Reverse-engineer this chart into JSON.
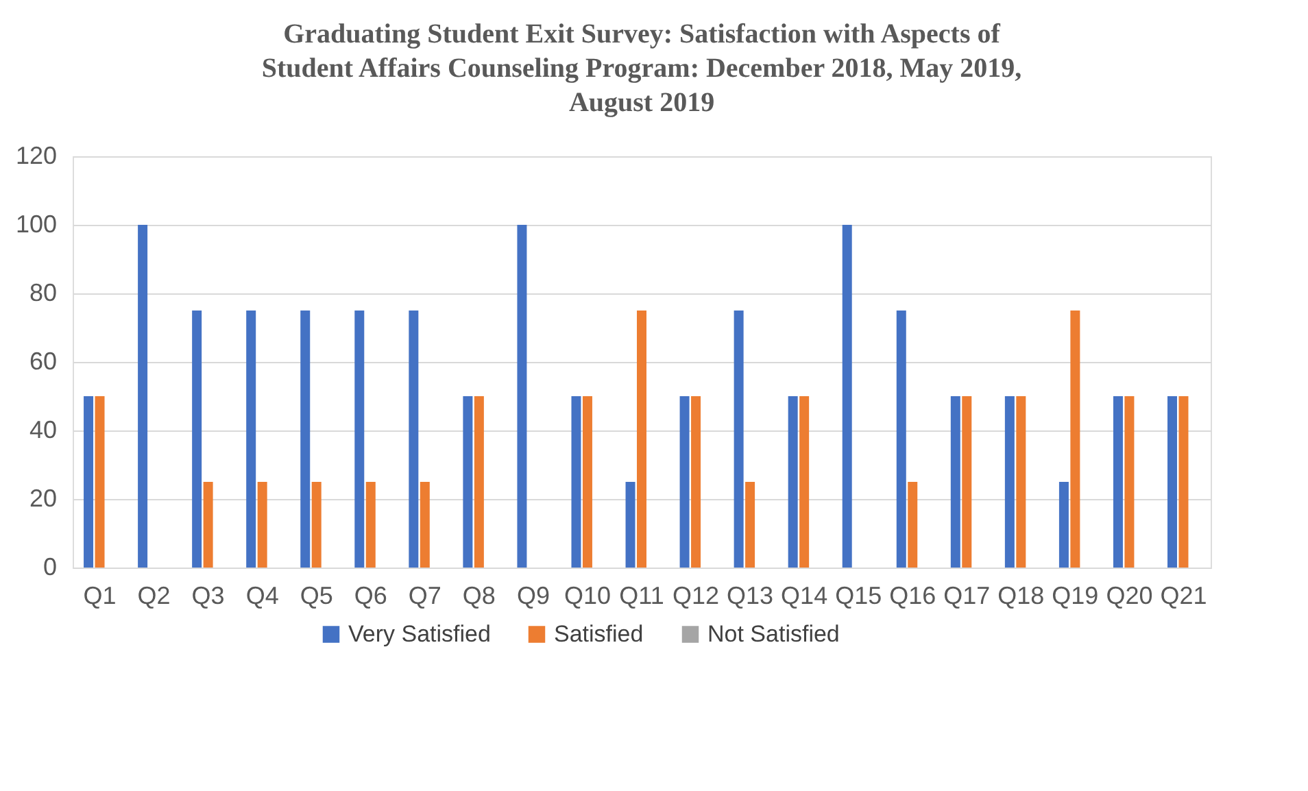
{
  "chart_data": {
    "type": "bar",
    "title": "Graduating Student Exit Survey: Satisfaction with Aspects of Student Affairs Counseling Program: December 2018, May 2019, August 2019",
    "categories": [
      "Q1",
      "Q2",
      "Q3",
      "Q4",
      "Q5",
      "Q6",
      "Q7",
      "Q8",
      "Q9",
      "Q10",
      "Q11",
      "Q12",
      "Q13",
      "Q14",
      "Q15",
      "Q16",
      "Q17",
      "Q18",
      "Q19",
      "Q20",
      "Q21"
    ],
    "series": [
      {
        "name": "Very Satisfied",
        "color": "#4472c4",
        "values": [
          50,
          100,
          75,
          75,
          75,
          75,
          75,
          50,
          100,
          50,
          25,
          50,
          75,
          50,
          100,
          75,
          50,
          50,
          25,
          50,
          50
        ]
      },
      {
        "name": "Satisfied",
        "color": "#ed7d31",
        "values": [
          50,
          0,
          25,
          25,
          25,
          25,
          25,
          50,
          0,
          50,
          75,
          50,
          25,
          50,
          0,
          25,
          50,
          50,
          75,
          50,
          50
        ]
      },
      {
        "name": "Not Satisfied",
        "color": "#a5a5a5",
        "values": [
          0,
          0,
          0,
          0,
          0,
          0,
          0,
          0,
          0,
          0,
          0,
          0,
          0,
          0,
          0,
          0,
          0,
          0,
          0,
          0,
          0
        ]
      }
    ],
    "ylim": [
      0,
      120
    ],
    "yticks": [
      0,
      20,
      40,
      60,
      80,
      100,
      120
    ],
    "grid": "y",
    "legend": "bottom"
  }
}
